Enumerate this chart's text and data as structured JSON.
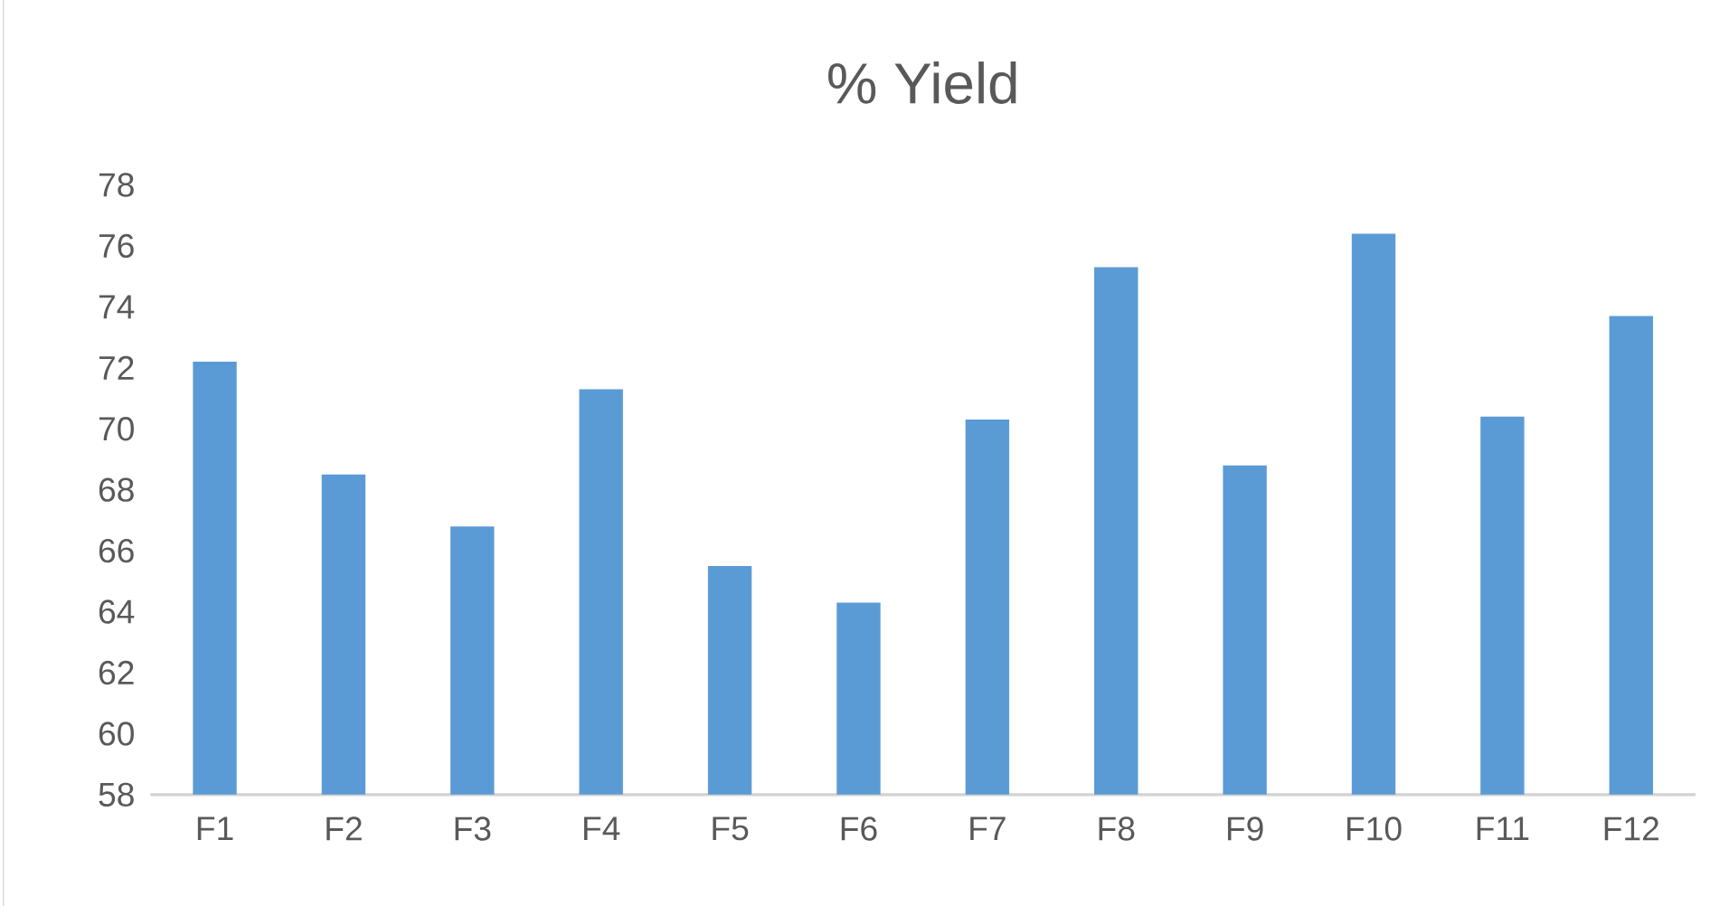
{
  "chart_data": {
    "type": "bar",
    "title": "% Yield",
    "categories": [
      "F1",
      "F2",
      "F3",
      "F4",
      "F5",
      "F6",
      "F7",
      "F8",
      "F9",
      "F10",
      "F11",
      "F12"
    ],
    "values": [
      72.2,
      68.5,
      66.8,
      71.3,
      65.5,
      64.3,
      70.3,
      75.3,
      68.8,
      76.4,
      70.4,
      73.7
    ],
    "color": "#5b9bd5",
    "ylim": [
      58,
      78
    ],
    "yticks": [
      58,
      60,
      62,
      64,
      66,
      68,
      70,
      72,
      74,
      76,
      78
    ]
  }
}
